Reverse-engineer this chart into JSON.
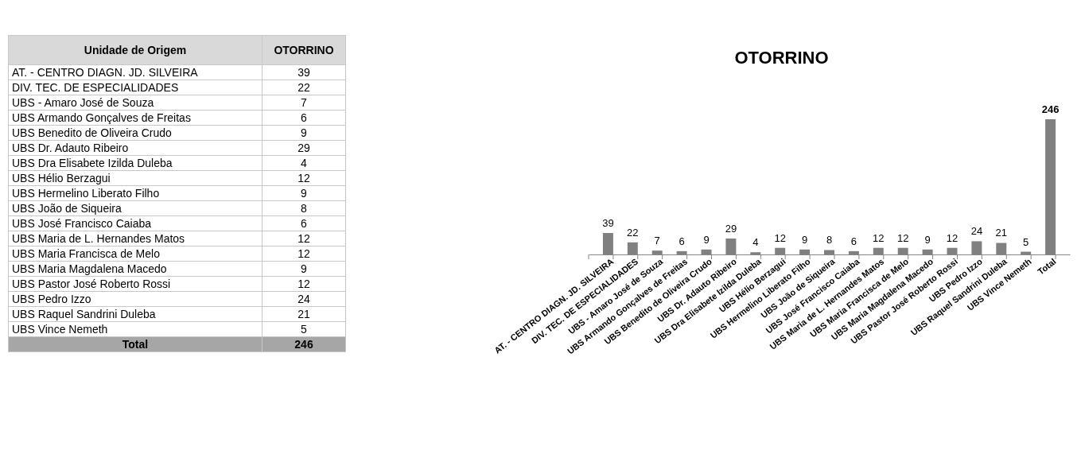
{
  "chart_data": [
    {
      "type": "other",
      "title": "OTORRINO",
      "annotations": [
        "Unidade de Origem"
      ],
      "categories": [
        "AT. - CENTRO DIAGN. JD. SILVEIRA",
        "DIV. TEC. DE ESPECIALIDADES",
        "UBS - Amaro José de Souza",
        "UBS Armando Gonçalves de Freitas",
        "UBS Benedito de Oliveira Crudo",
        "UBS Dr. Adauto Ribeiro",
        "UBS Dra Elisabete Izilda Duleba",
        "UBS Hélio Berzagui",
        "UBS Hermelino Liberato Filho",
        "UBS João de Siqueira",
        "UBS José Francisco Caiaba",
        "UBS Maria de L. Hernandes Matos",
        "UBS Maria Francisca de Melo",
        "UBS Maria Magdalena Macedo",
        "UBS Pastor José Roberto Rossi",
        "UBS Pedro Izzo",
        "UBS Raquel Sandrini Duleba",
        "UBS Vince Nemeth",
        "Total"
      ],
      "values": [
        39,
        22,
        7,
        6,
        9,
        29,
        4,
        12,
        9,
        8,
        6,
        12,
        12,
        9,
        12,
        24,
        21,
        5,
        246
      ],
      "data_labels": true
    },
    {
      "type": "bar",
      "title": "OTORRINO",
      "categories": [
        "AT. - CENTRO DIAGN. JD. SILVEIRA",
        "DIV. TEC. DE ESPECIALIDADES",
        "UBS - Amaro José de Souza",
        "UBS Armando Gonçalves de Freitas",
        "UBS Benedito de Oliveira Crudo",
        "UBS Dr. Adauto Ribeiro",
        "UBS Dra Elisabete Izilda Duleba",
        "UBS Hélio Berzagui",
        "UBS Hermelino Liberato Filho",
        "UBS João de Siqueira",
        "UBS José Francisco Caiaba",
        "UBS Maria de L. Hernandes Matos",
        "UBS Maria Francisca de Melo",
        "UBS Maria Magdalena Macedo",
        "UBS Pastor José Roberto Rossi",
        "UBS Pedro Izzo",
        "UBS Raquel Sandrini Duleba",
        "UBS Vince Nemeth",
        "Total"
      ],
      "values": [
        39,
        22,
        7,
        6,
        9,
        29,
        4,
        12,
        9,
        8,
        6,
        12,
        12,
        9,
        12,
        24,
        21,
        5,
        246
      ],
      "color": "#808080",
      "data_labels": true
    }
  ]
}
